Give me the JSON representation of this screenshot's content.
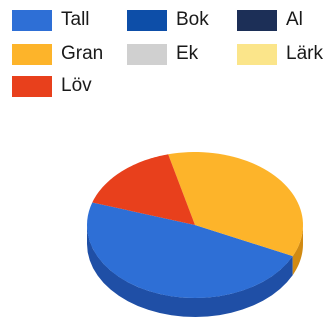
{
  "chart_data": {
    "type": "pie",
    "style": "3d",
    "legend_placement": "top",
    "title": "",
    "legend": [
      {
        "label": "Tall",
        "color": "#2e6fd6"
      },
      {
        "label": "Bok",
        "color": "#0d4ea8"
      },
      {
        "label": "Al",
        "color": "#1c2f57"
      },
      {
        "label": "Gran",
        "color": "#fdb42a"
      },
      {
        "label": "Ek",
        "color": "#d0d0d0"
      },
      {
        "label": "Lärk",
        "color": "#fbe58a"
      },
      {
        "label": "Löv",
        "color": "#e8401c"
      }
    ],
    "slices": [
      {
        "label": "Tall",
        "value": 48,
        "color": "#2e6fd6",
        "side_color": "#1f4fa6"
      },
      {
        "label": "Gran",
        "value": 36,
        "color": "#fdb42a",
        "side_color": "#d18a12"
      },
      {
        "label": "Löv",
        "value": 16,
        "color": "#e8401c",
        "side_color": "#b32d10"
      },
      {
        "label": "Bok",
        "value": 0,
        "color": "#0d4ea8",
        "side_color": "#0a3a80"
      },
      {
        "label": "Al",
        "value": 0,
        "color": "#1c2f57",
        "side_color": "#121f3a"
      },
      {
        "label": "Ek",
        "value": 0,
        "color": "#d0d0d0",
        "side_color": "#a8a8a8"
      },
      {
        "label": "Lärk",
        "value": 0,
        "color": "#fbe58a",
        "side_color": "#d6c060"
      }
    ]
  }
}
